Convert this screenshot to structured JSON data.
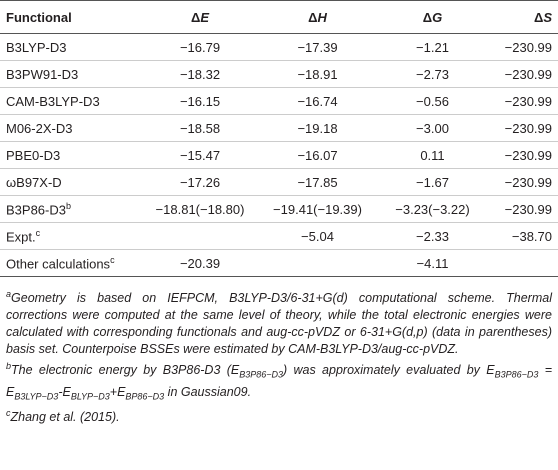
{
  "table": {
    "header": [
      {
        "text": "Functional"
      },
      {
        "symbol": "Δ",
        "var": "E"
      },
      {
        "symbol": "Δ",
        "var": "H"
      },
      {
        "symbol": "Δ",
        "var": "G"
      },
      {
        "symbol": "Δ",
        "var": "S"
      }
    ],
    "rows": [
      [
        {
          "text": "B3LYP-D3"
        },
        "−16.79",
        "−17.39",
        "−1.21",
        "−230.99"
      ],
      [
        {
          "text": "B3PW91-D3"
        },
        "−18.32",
        "−18.91",
        "−2.73",
        "−230.99"
      ],
      [
        {
          "text": "CAM-B3LYP-D3"
        },
        "−16.15",
        "−16.74",
        "−0.56",
        "−230.99"
      ],
      [
        {
          "text": "M06-2X-D3"
        },
        "−18.58",
        "−19.18",
        "−3.00",
        "−230.99"
      ],
      [
        {
          "text": "PBE0-D3"
        },
        "−15.47",
        "−16.07",
        "0.11",
        "−230.99"
      ],
      [
        {
          "text": "ωB97X-D"
        },
        "−17.26",
        "−17.85",
        "−1.67",
        "−230.99"
      ],
      [
        {
          "text": "B3P86-D3",
          "note": "b"
        },
        "−18.81(−18.80)",
        "−19.41(−19.39)",
        "−3.23(−3.22)",
        "−230.99"
      ],
      [
        {
          "text": "Expt.",
          "note": "c"
        },
        null,
        "−5.04",
        "−2.33",
        "−38.70"
      ],
      [
        {
          "text": "Other calculations",
          "note": "c"
        },
        "−20.39",
        null,
        "−4.11",
        null
      ]
    ]
  },
  "footnotes": [
    {
      "mark": "a",
      "parts": [
        "Geometry is based on IEFPCM, B3LYP-D3/6-31+G(d) computational scheme. Thermal corrections were computed at the same level of theory, while the total electronic energies were calculated with corresponding functionals and aug-cc-pVDZ or 6-31+G(d,p) (data in parentheses) basis set. Counterpoise BSSEs were estimated by CAM-B3LYP-D3/aug-cc-pVDZ."
      ]
    },
    {
      "mark": "b",
      "parts": [
        "The electronic energy by B3P86-D3 (E",
        "B3P86−D3",
        ") was approximately evaluated by E",
        "B3P86−D3",
        " = E",
        "B3LYP−D3",
        "-E",
        "BLYP−D3",
        "+E",
        "BP86−D3",
        " in Gaussian09."
      ]
    },
    {
      "mark": "c",
      "parts": [
        "Zhang et al. (2015)."
      ]
    }
  ]
}
